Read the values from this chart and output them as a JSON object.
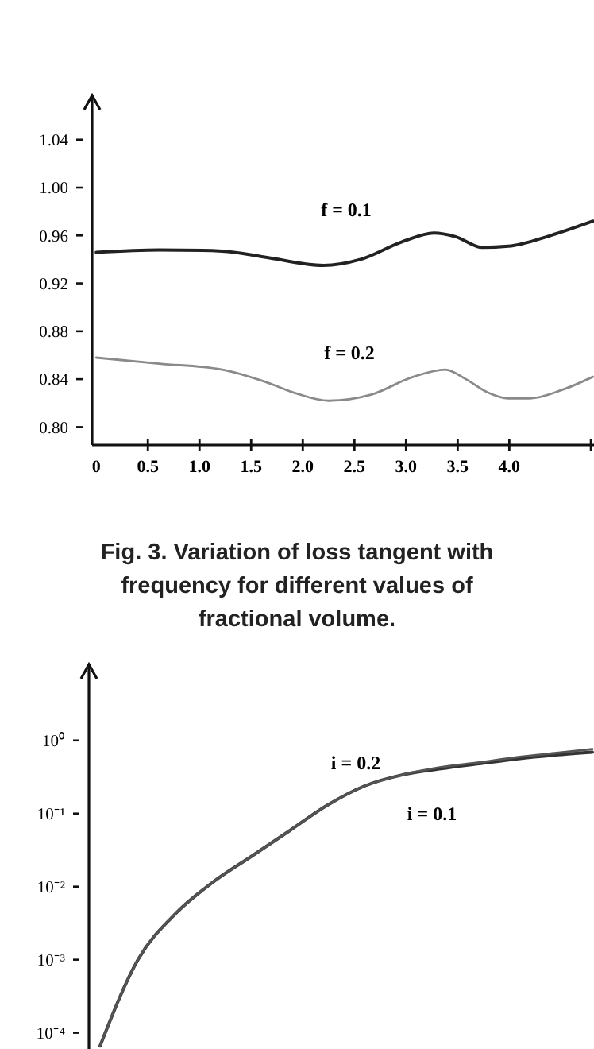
{
  "chart_data": [
    {
      "type": "line",
      "xlim": [
        -0.04,
        4.82
      ],
      "ylim": [
        0.785,
        1.077
      ],
      "xticks": [
        {
          "value": 0,
          "label": "0"
        },
        0.5,
        {
          "value": 1,
          "label": "1.0"
        },
        1.5,
        {
          "value": 2,
          "label": "2.0"
        },
        2.5,
        {
          "value": 3,
          "label": "3.0"
        },
        3.5,
        {
          "value": 4,
          "label": "4.0"
        },
        {
          "value": 4.79,
          "label": null
        }
      ],
      "yticks": [
        {
          "value": 0.8,
          "label": "0.80"
        },
        0.84,
        0.88,
        0.92,
        0.96,
        {
          "value": 1,
          "label": "1.00"
        },
        1.04
      ],
      "series": [
        {
          "name": "f = 0.1",
          "color": "#222222",
          "x": [
            0,
            0.61,
            1.22,
            1.63,
            2.2,
            2.56,
            2.97,
            3.27,
            3.48,
            3.74,
            3.99,
            4.4,
            4.81
          ],
          "values": [
            0.946,
            0.948,
            0.947,
            0.942,
            0.935,
            0.94,
            0.955,
            0.962,
            0.959,
            0.95,
            0.951,
            0.96,
            0.972
          ]
        },
        {
          "name": "f = 0.2",
          "color": "#8a8a8a",
          "x": [
            0,
            0.61,
            1.22,
            1.63,
            1.94,
            2.25,
            2.66,
            3.07,
            3.38,
            3.58,
            3.79,
            3.99,
            4.2,
            4.51,
            4.81
          ],
          "values": [
            0.858,
            0.853,
            0.848,
            0.838,
            0.828,
            0.822,
            0.827,
            0.842,
            0.848,
            0.84,
            0.829,
            0.824,
            0.824,
            0.831,
            0.842
          ]
        }
      ],
      "annotations": [
        "Fig. 3. Variation of loss tangent with frequency for different values of fractional volume."
      ]
    },
    {
      "type": "line",
      "log": true,
      "ylim": [
        6e-05,
        11
      ],
      "categories": [
        null,
        null,
        null,
        null,
        null,
        null,
        null,
        null,
        null,
        null,
        null,
        null,
        null,
        null
      ],
      "yticks": [
        {
          "value": 1,
          "label": "10⁰"
        },
        {
          "value": 0.1,
          "label": "10⁻¹"
        },
        {
          "value": 0.01,
          "label": "10⁻²"
        },
        {
          "value": 0.001,
          "label": "10⁻³"
        },
        {
          "value": 0.0001,
          "label": "10⁻⁴"
        }
      ],
      "series": [
        {
          "name": "i = 0.1",
          "color": "#333333",
          "values": [
            6.6e-05,
            0.001,
            0.0043,
            0.0117,
            0.026,
            0.058,
            0.13,
            0.24,
            0.34,
            0.41,
            0.48,
            0.56,
            0.63,
            0.69
          ]
        },
        {
          "name": "i = 0.2",
          "color": "#555555",
          "values": [
            6.6e-05,
            0.001,
            0.0043,
            0.0117,
            0.026,
            0.058,
            0.13,
            0.24,
            0.34,
            0.43,
            0.5,
            0.59,
            0.67,
            0.76
          ]
        }
      ]
    }
  ]
}
